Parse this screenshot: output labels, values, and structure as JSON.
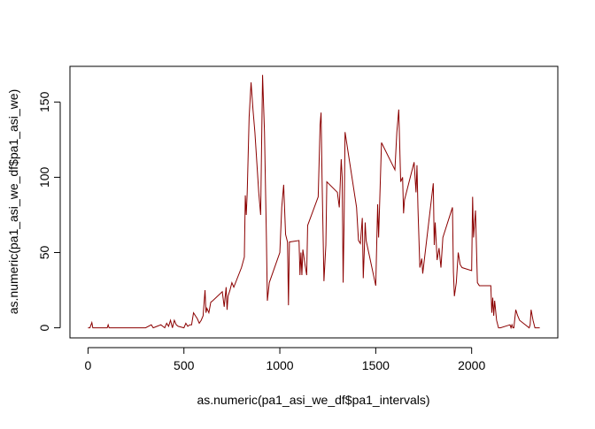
{
  "chart_data": {
    "type": "line",
    "xlabel": "as.numeric(pa1_asi_we_df$pa1_intervals)",
    "ylabel": "as.numeric(pa1_asi_we_df$pa1_asi_we)",
    "color": "#8b0000",
    "xlim": [
      -94.2,
      2449.2
    ],
    "ylim": [
      -6.7,
      173.7
    ],
    "xticks": [
      0,
      500,
      1000,
      1500,
      2000
    ],
    "yticks": [
      0,
      50,
      100,
      150
    ],
    "x": [
      0,
      10,
      20,
      25,
      50,
      100,
      105,
      110,
      200,
      300,
      330,
      340,
      360,
      380,
      400,
      410,
      420,
      430,
      440,
      450,
      460,
      470,
      500,
      510,
      520,
      530,
      540,
      550,
      560,
      570,
      580,
      590,
      600,
      610,
      615,
      620,
      630,
      640,
      650,
      700,
      710,
      720,
      725,
      730,
      740,
      750,
      760,
      800,
      815,
      820,
      825,
      830,
      840,
      850,
      860,
      870,
      880,
      890,
      900,
      910,
      920,
      930,
      935,
      945,
      1000,
      1010,
      1020,
      1030,
      1040,
      1045,
      1050,
      1100,
      1105,
      1110,
      1115,
      1120,
      1130,
      1140,
      1145,
      1200,
      1210,
      1215,
      1220,
      1230,
      1240,
      1245,
      1300,
      1310,
      1320,
      1325,
      1330,
      1335,
      1340,
      1400,
      1410,
      1420,
      1430,
      1435,
      1440,
      1445,
      1450,
      1500,
      1505,
      1510,
      1515,
      1530,
      1600,
      1610,
      1620,
      1630,
      1640,
      1645,
      1650,
      1700,
      1710,
      1715,
      1720,
      1730,
      1740,
      1745,
      1800,
      1805,
      1810,
      1820,
      1830,
      1840,
      1850,
      1900,
      1905,
      1910,
      1920,
      1930,
      1940,
      1950,
      2000,
      2005,
      2010,
      2020,
      2030,
      2040,
      2050,
      2100,
      2105,
      2110,
      2115,
      2120,
      2130,
      2140,
      2150,
      2200,
      2205,
      2210,
      2215,
      2220,
      2230,
      2240,
      2250,
      2300,
      2305,
      2310,
      2320,
      2330,
      2350,
      2355
    ],
    "values": [
      0,
      0,
      3.5,
      0,
      0,
      0,
      2,
      0,
      0,
      0,
      2,
      0,
      1,
      2,
      0,
      3,
      1,
      5,
      0,
      5,
      2,
      1,
      0,
      3,
      1,
      2,
      2,
      10,
      8,
      6,
      3,
      5,
      8,
      25,
      10,
      13,
      10,
      17,
      18,
      24,
      14,
      27,
      12,
      21,
      25,
      30,
      27,
      40,
      47,
      88,
      75,
      90,
      140,
      163,
      145,
      130,
      110,
      90,
      75,
      168,
      130,
      60,
      18,
      30,
      50,
      80,
      95,
      62,
      57,
      15,
      57,
      58,
      35,
      50,
      35,
      52,
      43,
      35,
      68,
      87,
      135,
      143,
      100,
      31,
      55,
      97,
      90,
      80,
      112,
      100,
      30,
      70,
      130,
      80,
      58,
      56,
      73,
      33,
      50,
      70,
      58,
      28,
      55,
      82,
      60,
      123,
      105,
      130,
      145,
      97,
      100,
      76,
      85,
      110,
      90,
      108,
      80,
      40,
      46,
      36,
      96,
      55,
      70,
      45,
      53,
      40,
      60,
      80,
      37,
      21,
      30,
      50,
      42,
      40,
      38,
      87,
      60,
      78,
      30,
      28,
      28,
      28,
      10,
      20,
      8,
      18,
      5,
      0,
      0,
      2,
      0,
      2,
      0,
      0,
      12,
      8,
      5,
      0,
      2,
      12,
      5,
      0,
      0,
      0
    ]
  }
}
